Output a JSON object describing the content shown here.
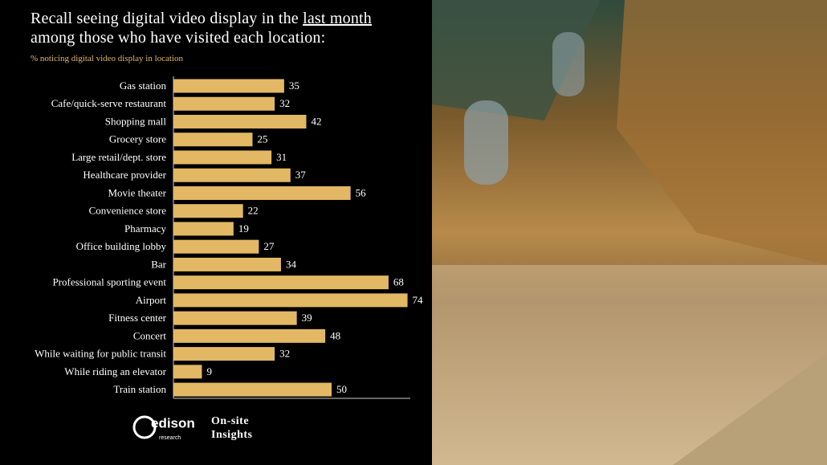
{
  "chart_data": {
    "type": "bar",
    "title_lines": [
      [
        "Recall seeing digital video display in the ",
        "last month"
      ],
      [
        "among those who have visited each location:"
      ]
    ],
    "subtitle": "% noticing digital video display in location",
    "categories": [
      "Gas station",
      "Cafe/quick-serve restaurant",
      "Shopping mall",
      "Grocery store",
      "Large retail/dept. store",
      "Healthcare provider",
      "Movie theater",
      "Convenience store",
      "Pharmacy",
      "Office building lobby",
      "Bar",
      "Professional sporting event",
      "Airport",
      "Fitness center",
      "Concert",
      "While waiting for public transit",
      "While riding an elevator",
      "Train station"
    ],
    "values": [
      35,
      32,
      42,
      25,
      31,
      37,
      56,
      22,
      19,
      27,
      34,
      68,
      74,
      39,
      48,
      32,
      9,
      50
    ],
    "color": "#e2b865"
  },
  "footer": {
    "logo": [
      "edison",
      "research"
    ],
    "tagline": [
      "On-site",
      "Insights"
    ]
  }
}
